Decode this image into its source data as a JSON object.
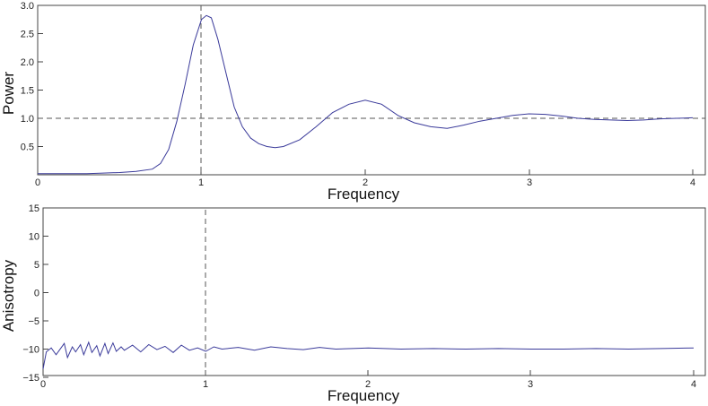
{
  "chart_data": [
    {
      "type": "line",
      "xlabel": "Frequency",
      "ylabel": "Power",
      "xlim": [
        0,
        4
      ],
      "ylim": [
        0,
        3.0
      ],
      "x_ticks": [
        "0",
        "1",
        "2",
        "3",
        "4"
      ],
      "y_ticks": [
        "0.5",
        "1.0",
        "1.5",
        "2.0",
        "2.5",
        "3.0"
      ],
      "grid": false,
      "reference_lines": {
        "vertical_x": 1.0,
        "horizontal_y": 1.0
      },
      "series_color": "#3a3a9a",
      "x": [
        0.0,
        0.1,
        0.2,
        0.3,
        0.4,
        0.5,
        0.6,
        0.7,
        0.75,
        0.8,
        0.85,
        0.9,
        0.95,
        1.0,
        1.03,
        1.06,
        1.1,
        1.15,
        1.2,
        1.25,
        1.3,
        1.35,
        1.4,
        1.45,
        1.5,
        1.6,
        1.7,
        1.8,
        1.9,
        2.0,
        2.1,
        2.2,
        2.3,
        2.4,
        2.5,
        2.6,
        2.7,
        2.8,
        2.9,
        3.0,
        3.1,
        3.2,
        3.3,
        3.4,
        3.5,
        3.6,
        3.7,
        3.8,
        3.9,
        4.0
      ],
      "y": [
        0.02,
        0.02,
        0.02,
        0.02,
        0.03,
        0.04,
        0.06,
        0.1,
        0.2,
        0.45,
        0.95,
        1.6,
        2.3,
        2.75,
        2.82,
        2.78,
        2.4,
        1.8,
        1.2,
        0.85,
        0.65,
        0.55,
        0.5,
        0.48,
        0.5,
        0.62,
        0.85,
        1.1,
        1.25,
        1.32,
        1.25,
        1.05,
        0.92,
        0.85,
        0.82,
        0.88,
        0.95,
        1.0,
        1.05,
        1.08,
        1.07,
        1.04,
        1.0,
        0.98,
        0.97,
        0.96,
        0.97,
        0.99,
        1.0,
        1.01
      ]
    },
    {
      "type": "line",
      "xlabel": "Frequency",
      "ylabel": "Anisotropy",
      "xlim": [
        0,
        4
      ],
      "ylim": [
        -15,
        15
      ],
      "x_ticks": [
        "0",
        "1",
        "2",
        "3",
        "4"
      ],
      "y_ticks": [
        "−15",
        "−10",
        "−5",
        "0",
        "5",
        "10",
        "15"
      ],
      "grid": false,
      "reference_lines": {
        "vertical_x": 1.0
      },
      "series_color": "#3a3a9a",
      "x": [
        0.0,
        0.02,
        0.05,
        0.08,
        0.1,
        0.13,
        0.15,
        0.18,
        0.2,
        0.23,
        0.25,
        0.28,
        0.3,
        0.33,
        0.35,
        0.38,
        0.4,
        0.43,
        0.45,
        0.48,
        0.5,
        0.55,
        0.6,
        0.65,
        0.7,
        0.75,
        0.8,
        0.85,
        0.9,
        0.95,
        1.0,
        1.05,
        1.1,
        1.2,
        1.3,
        1.4,
        1.5,
        1.6,
        1.7,
        1.8,
        1.9,
        2.0,
        2.2,
        2.4,
        2.6,
        2.8,
        3.0,
        3.2,
        3.4,
        3.6,
        3.8,
        4.0
      ],
      "y": [
        -13.5,
        -10.5,
        -9.8,
        -11.0,
        -10.2,
        -9.0,
        -11.5,
        -9.6,
        -10.5,
        -9.2,
        -11.0,
        -8.8,
        -10.6,
        -9.4,
        -11.2,
        -9.0,
        -10.8,
        -8.9,
        -10.4,
        -9.6,
        -10.2,
        -9.3,
        -10.5,
        -9.2,
        -10.1,
        -9.5,
        -10.6,
        -9.3,
        -10.2,
        -9.8,
        -10.4,
        -9.6,
        -10.0,
        -9.7,
        -10.2,
        -9.6,
        -9.9,
        -10.1,
        -9.7,
        -10.0,
        -9.9,
        -9.8,
        -10.0,
        -9.9,
        -10.0,
        -9.9,
        -10.0,
        -10.0,
        -9.9,
        -10.0,
        -9.9,
        -9.8
      ]
    }
  ]
}
